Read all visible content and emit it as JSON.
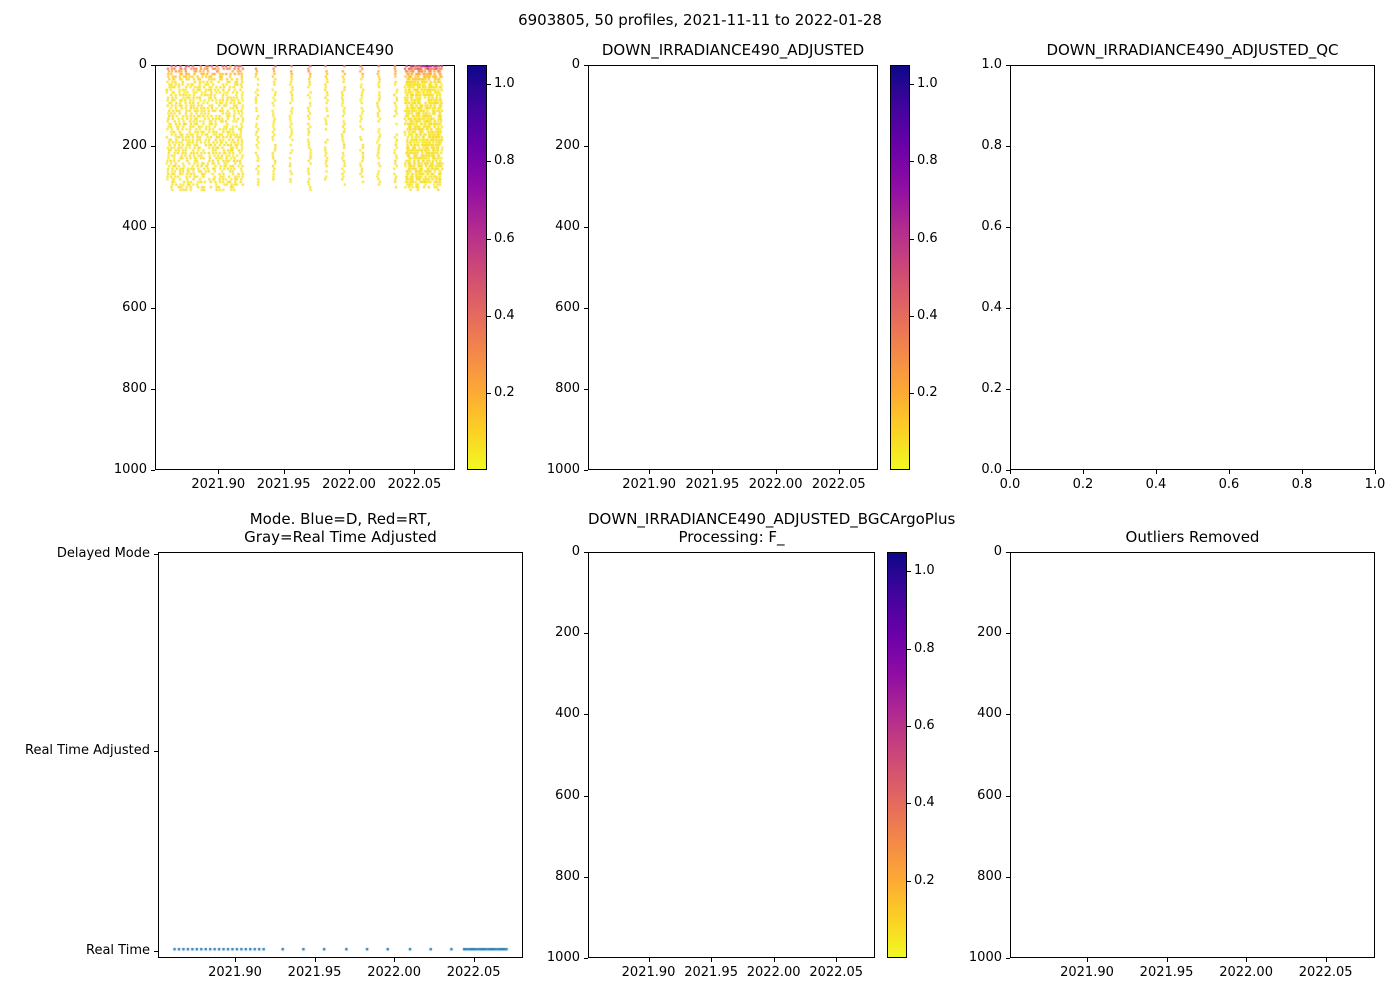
{
  "figure": {
    "title": "6903805, 50 profiles, 2021-11-11 to 2022-01-28"
  },
  "colors": {
    "scatter_blue": "#1f77b4",
    "axis": "#000000",
    "plasma": [
      "#0d0887",
      "#41049d",
      "#6a00a8",
      "#8f0da4",
      "#b12a90",
      "#cc4778",
      "#e16462",
      "#f2844b",
      "#fca636",
      "#fcce25",
      "#f0f921"
    ]
  },
  "chart_data": {
    "suptitle": "6903805, 50 profiles, 2021-11-11 to 2022-01-28",
    "profiles": {
      "count": 50,
      "date_range": "2021-11-11 to 2022-01-28",
      "mode": "Real Time",
      "times": [
        2021.862,
        2021.8648,
        2021.8676,
        2021.8704,
        2021.8732,
        2021.876,
        2021.8788,
        2021.8816,
        2021.8844,
        2021.8872,
        2021.89,
        2021.8928,
        2021.8956,
        2021.8984,
        2021.9012,
        2021.904,
        2021.9068,
        2021.9096,
        2021.9124,
        2021.9152,
        2021.918,
        2021.93,
        2021.943,
        2021.956,
        2021.97,
        2021.983,
        2021.996,
        2022.01,
        2022.023,
        2022.036,
        2022.044,
        2022.0454,
        2022.0468,
        2022.0482,
        2022.0496,
        2022.051,
        2022.0524,
        2022.0538,
        2022.0552,
        2022.0566,
        2022.058,
        2022.0594,
        2022.0608,
        2022.0622,
        2022.0636,
        2022.065,
        2022.0664,
        2022.0678,
        2022.0692,
        2022.0706
      ],
      "surface_values": [
        0.45,
        0.38,
        0.52,
        0.41,
        0.35,
        0.48,
        0.43,
        0.39,
        0.55,
        0.42,
        0.37,
        0.46,
        0.4,
        0.51,
        0.36,
        0.44,
        0.49,
        0.38,
        0.47,
        0.41,
        0.43,
        0.36,
        0.42,
        0.38,
        0.45,
        0.4,
        0.37,
        0.43,
        0.39,
        0.44,
        0.52,
        0.58,
        0.47,
        0.61,
        0.54,
        0.49,
        0.63,
        0.56,
        0.5,
        0.59,
        0.53,
        0.48,
        0.62,
        0.55,
        0.51,
        0.57,
        0.46,
        0.6,
        0.52,
        0.58
      ],
      "max_depth_m": 300,
      "decay_depth_m": 20,
      "background_value": 0.05
    },
    "panels": [
      {
        "type": "scatter",
        "plot": "profiles",
        "title": "DOWN_IRRADIANCE490",
        "xlim": [
          2021.8516,
          2022.081
        ],
        "x_ticks": [
          "2021.90",
          "2021.95",
          "2022.00",
          "2022.05"
        ],
        "ylim": [
          1000,
          0
        ],
        "y_ticks": [
          "0",
          "200",
          "400",
          "600",
          "800",
          "1000"
        ],
        "colorbar": {
          "vmin": 0,
          "vmax": 1.05,
          "ticks": [
            "0.2",
            "0.4",
            "0.6",
            "0.8",
            "1.0"
          ],
          "cmap": "plasma_r"
        }
      },
      {
        "type": "scatter",
        "plot": "none",
        "title": "DOWN_IRRADIANCE490_ADJUSTED",
        "xlim": [
          2021.8516,
          2022.081
        ],
        "x_ticks": [
          "2021.90",
          "2021.95",
          "2022.00",
          "2022.05"
        ],
        "ylim": [
          1000,
          0
        ],
        "y_ticks": [
          "0",
          "200",
          "400",
          "600",
          "800",
          "1000"
        ],
        "colorbar": {
          "vmin": 0,
          "vmax": 1.05,
          "ticks": [
            "0.2",
            "0.4",
            "0.6",
            "0.8",
            "1.0"
          ],
          "cmap": "plasma_r"
        }
      },
      {
        "type": "scatter",
        "plot": "none",
        "title": "DOWN_IRRADIANCE490_ADJUSTED_QC",
        "xlim": [
          0.0,
          1.0
        ],
        "x_ticks": [
          "0.0",
          "0.2",
          "0.4",
          "0.6",
          "0.8",
          "1.0"
        ],
        "ylim": [
          0.0,
          1.0
        ],
        "y_ticks": [
          "0.0",
          "0.2",
          "0.4",
          "0.6",
          "0.8",
          "1.0"
        ]
      },
      {
        "type": "scatter",
        "plot": "modes",
        "title": "Mode. Blue=D, Red=RT,\nGray=Real Time Adjusted",
        "xlim": [
          2021.8516,
          2022.081
        ],
        "x_ticks": [
          "2021.90",
          "2021.95",
          "2022.00",
          "2022.05"
        ],
        "categories": [
          "Delayed Mode",
          "Real Time Adjusted",
          "Real Time"
        ],
        "values_category": "Real Time"
      },
      {
        "type": "scatter",
        "plot": "none",
        "title": "DOWN_IRRADIANCE490_ADJUSTED_BGCArgoPlus\nProcessing: F_",
        "xlim": [
          2021.8516,
          2022.081
        ],
        "x_ticks": [
          "2021.90",
          "2021.95",
          "2022.00",
          "2022.05"
        ],
        "ylim": [
          1000,
          0
        ],
        "y_ticks": [
          "0",
          "200",
          "400",
          "600",
          "800",
          "1000"
        ],
        "colorbar": {
          "vmin": 0,
          "vmax": 1.05,
          "ticks": [
            "0.2",
            "0.4",
            "0.6",
            "0.8",
            "1.0"
          ],
          "cmap": "plasma_r"
        }
      },
      {
        "type": "scatter",
        "plot": "none",
        "title": "Outliers Removed",
        "xlim": [
          2021.8516,
          2022.081
        ],
        "x_ticks": [
          "2021.90",
          "2021.95",
          "2022.00",
          "2022.05"
        ],
        "ylim": [
          1000,
          0
        ],
        "y_ticks": [
          "0",
          "200",
          "400",
          "600",
          "800",
          "1000"
        ]
      }
    ]
  }
}
